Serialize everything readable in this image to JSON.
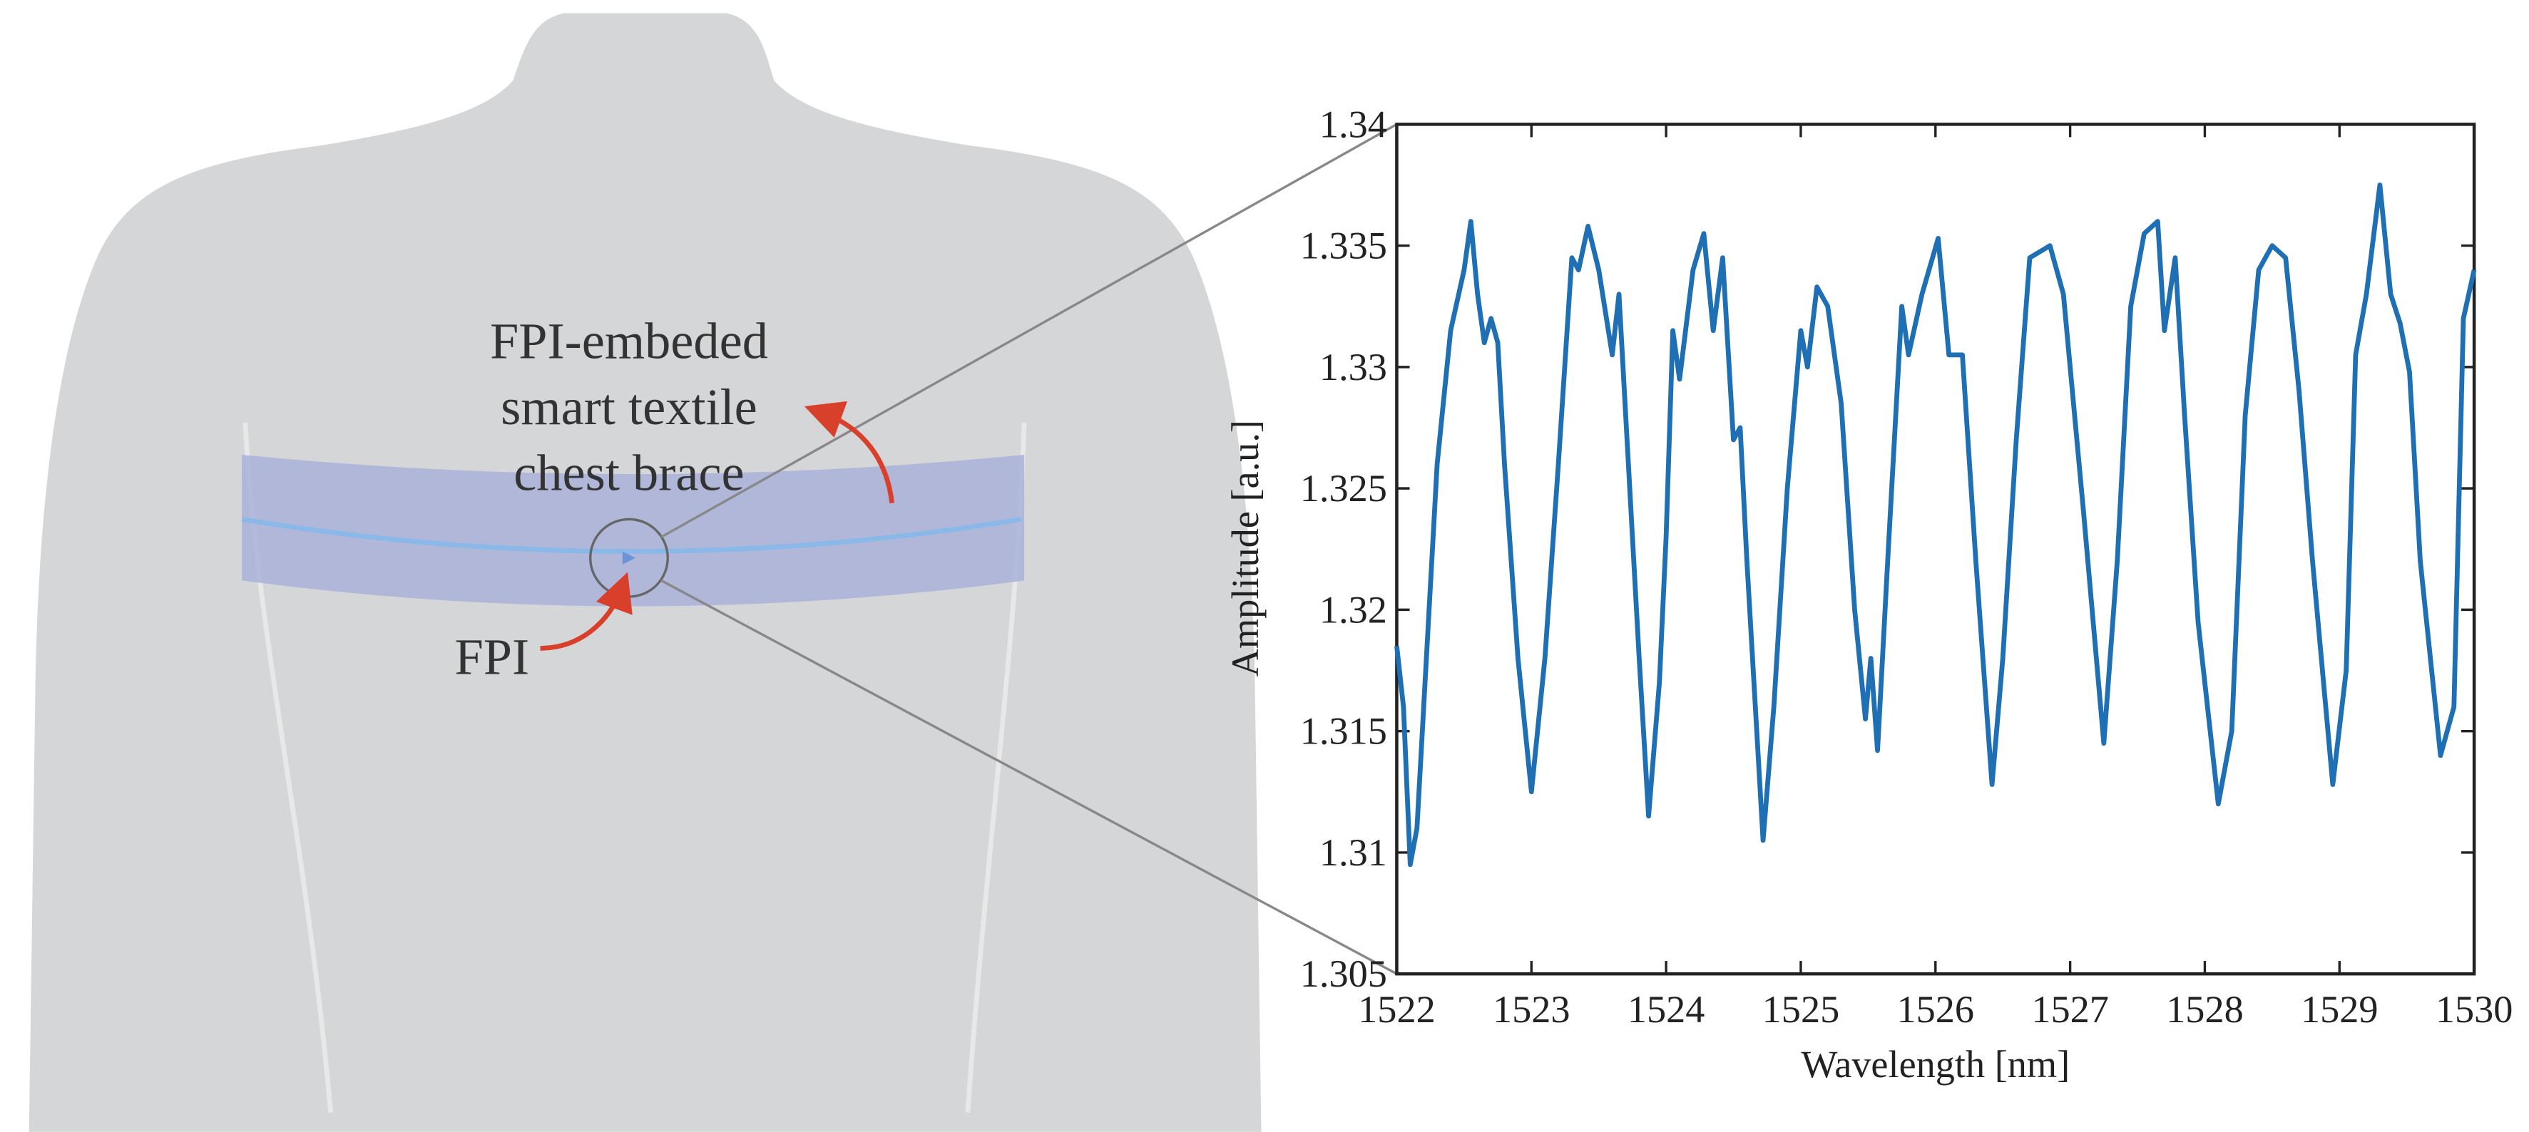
{
  "illustration": {
    "caption_lines": [
      "FPI-embeded",
      "smart textile",
      "chest brace"
    ],
    "sensor_label": "FPI"
  },
  "chart_data": {
    "type": "line",
    "xlabel": "Wavelength [nm]",
    "ylabel": "Amplitude [a.u.]",
    "color": "#1f6fb4",
    "x": [
      1522,
      1522.05,
      1522.1,
      1522.15,
      1522.2,
      1522.3,
      1522.4,
      1522.5,
      1522.55,
      1522.6,
      1522.65,
      1522.7,
      1522.75,
      1522.8,
      1522.9,
      1523.0,
      1523.1,
      1523.2,
      1523.3,
      1523.35,
      1523.42,
      1523.5,
      1523.6,
      1523.65,
      1523.7,
      1523.8,
      1523.87,
      1523.95,
      1524.0,
      1524.05,
      1524.1,
      1524.2,
      1524.28,
      1524.35,
      1524.42,
      1524.5,
      1524.55,
      1524.6,
      1524.72,
      1524.8,
      1524.9,
      1525.0,
      1525.05,
      1525.12,
      1525.2,
      1525.3,
      1525.4,
      1525.48,
      1525.52,
      1525.57,
      1525.65,
      1525.75,
      1525.8,
      1525.9,
      1526.02,
      1526.1,
      1526.15,
      1526.2,
      1526.3,
      1526.42,
      1526.5,
      1526.6,
      1526.7,
      1526.85,
      1526.95,
      1527.1,
      1527.25,
      1527.35,
      1527.45,
      1527.55,
      1527.65,
      1527.7,
      1527.78,
      1527.85,
      1527.95,
      1528.1,
      1528.2,
      1528.3,
      1528.4,
      1528.5,
      1528.6,
      1528.7,
      1528.8,
      1528.95,
      1529.05,
      1529.12,
      1529.2,
      1529.3,
      1529.38,
      1529.45,
      1529.52,
      1529.6,
      1529.75,
      1529.85,
      1529.92,
      1530
    ],
    "values": [
      1.3185,
      1.316,
      1.3095,
      1.311,
      1.316,
      1.326,
      1.3315,
      1.334,
      1.336,
      1.333,
      1.331,
      1.332,
      1.331,
      1.326,
      1.318,
      1.3125,
      1.318,
      1.326,
      1.3345,
      1.334,
      1.3358,
      1.334,
      1.3305,
      1.333,
      1.328,
      1.318,
      1.3115,
      1.317,
      1.323,
      1.3315,
      1.3295,
      1.334,
      1.3355,
      1.3315,
      1.3345,
      1.327,
      1.3275,
      1.322,
      1.3105,
      1.316,
      1.325,
      1.3315,
      1.33,
      1.3333,
      1.3325,
      1.3285,
      1.32,
      1.3155,
      1.318,
      1.3142,
      1.3225,
      1.3325,
      1.3305,
      1.333,
      1.3353,
      1.3305,
      1.3305,
      1.3305,
      1.322,
      1.3128,
      1.318,
      1.327,
      1.3345,
      1.335,
      1.333,
      1.324,
      1.3145,
      1.322,
      1.3325,
      1.3355,
      1.336,
      1.3315,
      1.3345,
      1.328,
      1.3195,
      1.312,
      1.315,
      1.328,
      1.334,
      1.335,
      1.3345,
      1.329,
      1.322,
      1.3128,
      1.3175,
      1.3305,
      1.333,
      1.3375,
      1.333,
      1.3318,
      1.3298,
      1.322,
      1.314,
      1.316,
      1.332,
      1.334
    ],
    "xlim": [
      1522,
      1530
    ],
    "xticks": [
      1522,
      1523,
      1524,
      1525,
      1526,
      1527,
      1528,
      1529,
      1530
    ],
    "ylim": [
      1.305,
      1.34
    ],
    "yticks": [
      1.305,
      1.31,
      1.315,
      1.32,
      1.325,
      1.33,
      1.335,
      1.34
    ]
  }
}
